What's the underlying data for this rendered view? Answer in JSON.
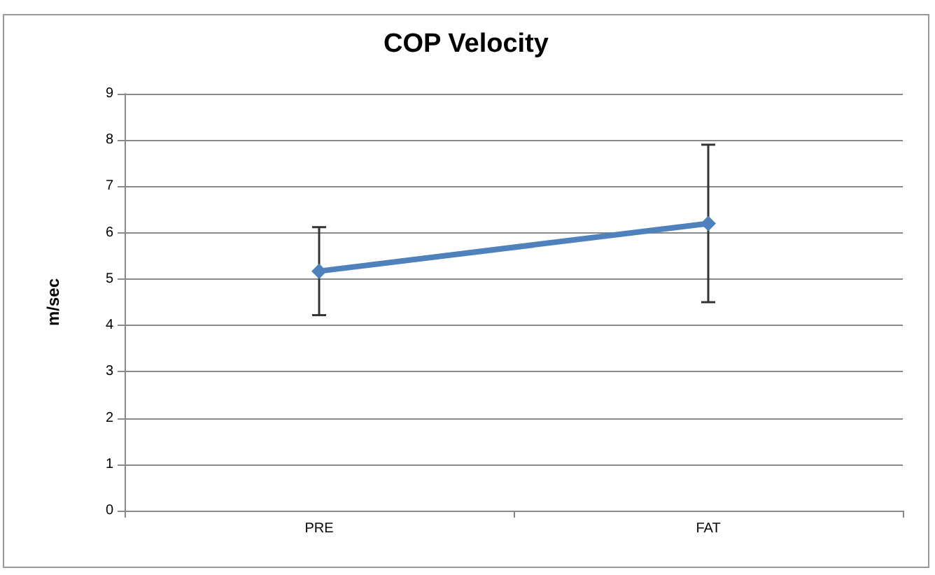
{
  "chart_data": {
    "type": "line",
    "title": "COP Velocity",
    "ylabel": "m/sec",
    "categories": [
      "PRE",
      "FAT"
    ],
    "series": [
      {
        "color": "#4f81bd",
        "values": [
          5.17,
          6.2
        ],
        "errors": [
          0.95,
          1.7
        ]
      }
    ],
    "ylim": [
      0,
      9
    ],
    "yticks": [
      0,
      1,
      2,
      3,
      4,
      5,
      6,
      7,
      8,
      9
    ],
    "grid": "y",
    "marker": "diamond",
    "line_style": "solid"
  }
}
